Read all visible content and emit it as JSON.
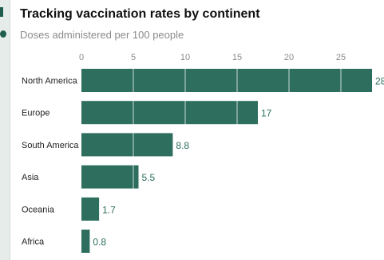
{
  "page": {
    "title": "Tracking vaccination rates by continent",
    "subtitle": "Doses administered per 100 people"
  },
  "colors": {
    "bar": "#2d6e5e",
    "value_label": "#2d6e5e",
    "grid": "#ffffff"
  },
  "chart_data": {
    "type": "bar",
    "orientation": "horizontal",
    "title": "Tracking vaccination rates by continent",
    "subtitle": "Doses administered per 100 people",
    "xlabel": "",
    "ylabel": "",
    "categories": [
      "North America",
      "Europe",
      "South America",
      "Asia",
      "Oceania",
      "Africa"
    ],
    "values": [
      28,
      17,
      8.8,
      5.5,
      1.7,
      0.8
    ],
    "value_labels": [
      "28",
      "17",
      "8.8",
      "5.5",
      "1.7",
      "0.8"
    ],
    "x_ticks": [
      0,
      5,
      10,
      15,
      20,
      25
    ],
    "x_tick_labels": [
      "0",
      "5",
      "10",
      "15",
      "20",
      "25"
    ],
    "xlim": [
      0,
      28
    ],
    "grid": true,
    "legend": "none"
  }
}
